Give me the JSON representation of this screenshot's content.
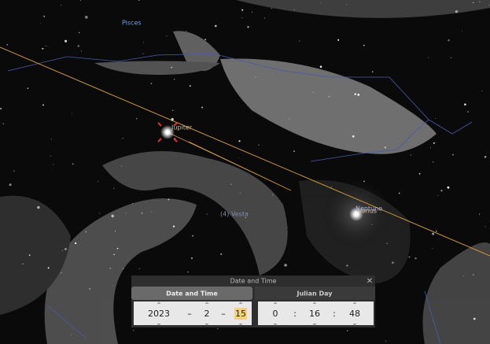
{
  "sky": {
    "constellation": "Pisces",
    "planets": [
      "Jupiter",
      "Neptune",
      "Venus"
    ],
    "asteroid": "(4) Vesta"
  },
  "dialog": {
    "title": "Date and Time",
    "tabs": [
      "Date and Time",
      "Julian Day"
    ],
    "date": {
      "year": 2023,
      "month": 2,
      "day": 15,
      "separator": "–"
    },
    "time": {
      "hour": 0,
      "minute": 16,
      "second": 48,
      "separator": ":"
    }
  }
}
